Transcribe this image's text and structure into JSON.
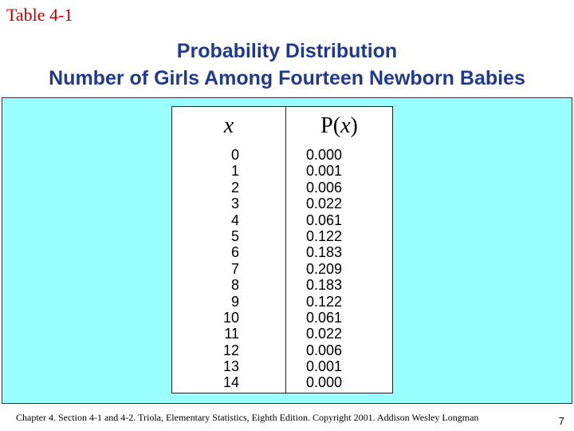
{
  "slide": {
    "label": "Table 4-1",
    "title_line1": "Probability Distribution",
    "title_line2": "Number of Girls Among Fourteen Newborn Babies"
  },
  "table": {
    "header_x": "x",
    "header_p_prefix": "P(",
    "header_p_var": "x",
    "header_p_suffix": ")",
    "rows": [
      {
        "x": "0",
        "p": "0.000"
      },
      {
        "x": "1",
        "p": "0.001"
      },
      {
        "x": "2",
        "p": "0.006"
      },
      {
        "x": "3",
        "p": "0.022"
      },
      {
        "x": "4",
        "p": "0.061"
      },
      {
        "x": "5",
        "p": "0.122"
      },
      {
        "x": "6",
        "p": "0.183"
      },
      {
        "x": "7",
        "p": "0.209"
      },
      {
        "x": "8",
        "p": "0.183"
      },
      {
        "x": "9",
        "p": "0.122"
      },
      {
        "x": "10",
        "p": "0.061"
      },
      {
        "x": "11",
        "p": "0.022"
      },
      {
        "x": "12",
        "p": "0.006"
      },
      {
        "x": "13",
        "p": "0.001"
      },
      {
        "x": "14",
        "p": "0.000"
      }
    ]
  },
  "footer": {
    "citation": "Chapter 4. Section 4-1 and 4-2. Triola, Elementary Statistics, Eighth Edition. Copyright  2001.  Addison Wesley Longman",
    "page_number": "7"
  },
  "colors": {
    "label": "#c00000",
    "title": "#1f3a8f",
    "panel_background": "#99ffff"
  }
}
